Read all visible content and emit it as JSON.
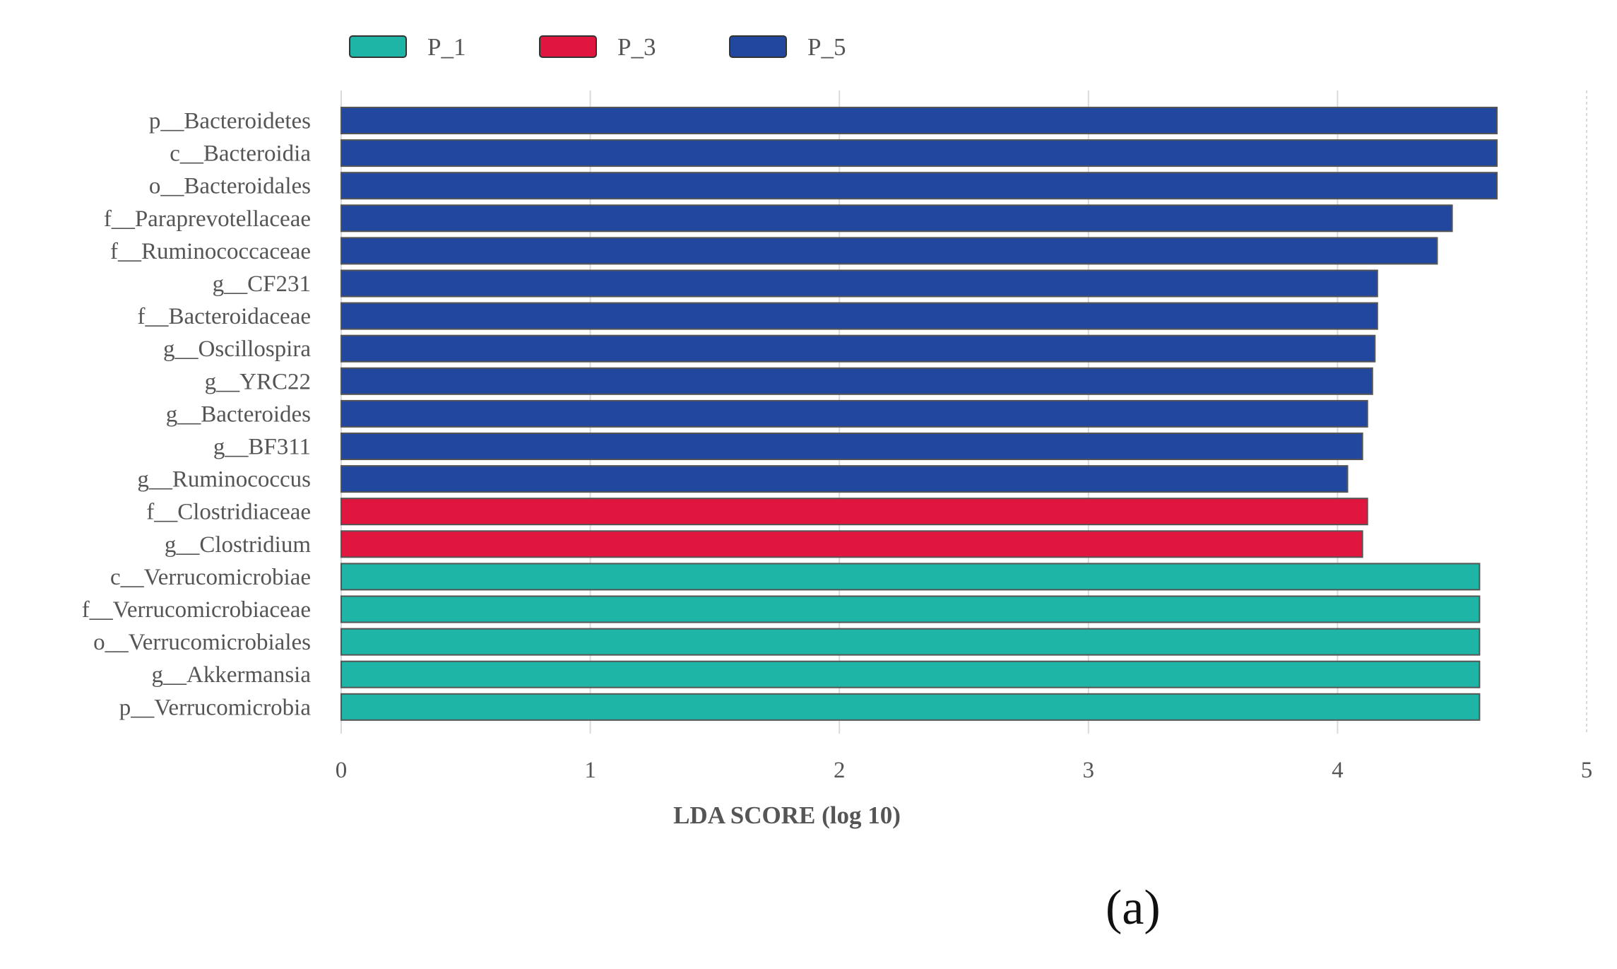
{
  "chart_data": {
    "type": "bar",
    "orientation": "horizontal",
    "categories": [
      "p__Bacteroidetes",
      "c__Bacteroidia",
      "o__Bacteroidales",
      "f__Paraprevotellaceae",
      "f__Ruminococcaceae",
      "g__CF231",
      "f__Bacteroidaceae",
      "g__Oscillospira",
      "g__YRC22",
      "g__Bacteroides",
      "g__BF311",
      "g__Ruminococcus",
      "f__Clostridiaceae",
      "g__Clostridium",
      "c__Verrucomicrobiae",
      "f__Verrucomicrobiaceae",
      "o__Verrucomicrobiales",
      "g__Akkermansia",
      "p__Verrucomicrobia"
    ],
    "values": [
      4.64,
      4.64,
      4.64,
      4.46,
      4.4,
      4.16,
      4.16,
      4.15,
      4.14,
      4.12,
      4.1,
      4.04,
      4.12,
      4.1,
      4.57,
      4.57,
      4.57,
      4.57,
      4.57
    ],
    "groups": [
      "P_5",
      "P_5",
      "P_5",
      "P_5",
      "P_5",
      "P_5",
      "P_5",
      "P_5",
      "P_5",
      "P_5",
      "P_5",
      "P_5",
      "P_3",
      "P_3",
      "P_1",
      "P_1",
      "P_1",
      "P_1",
      "P_1"
    ],
    "legend": [
      {
        "name": "P_1",
        "color": "#1fb5a6"
      },
      {
        "name": "P_3",
        "color": "#e0163f"
      },
      {
        "name": "P_5",
        "color": "#22479e"
      }
    ],
    "legend_position": "top-left",
    "xlabel": "LDA SCORE (log 10)",
    "xticks": [
      "0",
      "1",
      "2",
      "3",
      "4",
      "5"
    ],
    "xlim": [
      0,
      5
    ],
    "grid": true,
    "panel_label": "(a)"
  }
}
